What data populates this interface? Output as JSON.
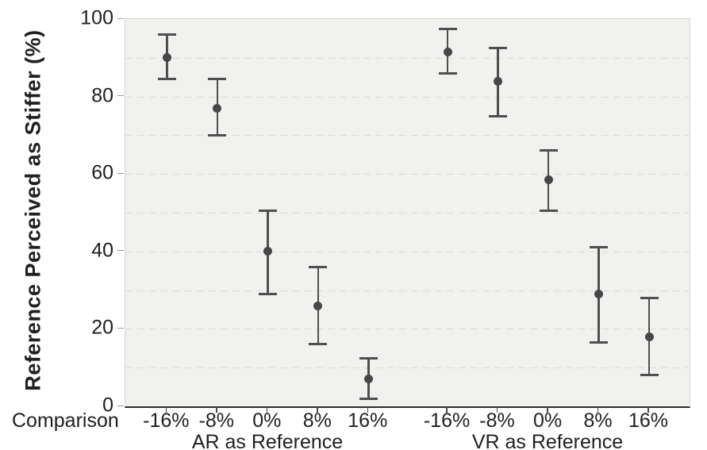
{
  "chart_data": {
    "type": "scatter",
    "error_bars": true,
    "title": "",
    "ylabel": "Reference Perceived as Stiffer (%)",
    "xlabel": "Comparison",
    "ylim": [
      0,
      100
    ],
    "yticks": [
      0,
      20,
      40,
      60,
      80,
      100
    ],
    "gridline_step": 10,
    "grid": "horizontal-dashed",
    "legend_position": "none",
    "categories": [
      "-16%",
      "-8%",
      "0%",
      "8%",
      "16%"
    ],
    "series": [
      {
        "name": "AR as Reference",
        "means": [
          90,
          77,
          40,
          26,
          7
        ],
        "ci_low": [
          84.5,
          70,
          29,
          16,
          2
        ],
        "ci_high": [
          96,
          84.5,
          50.5,
          36,
          12.5
        ]
      },
      {
        "name": "VR as Reference",
        "means": [
          91.5,
          84,
          58.5,
          29,
          18
        ],
        "ci_low": [
          86,
          75,
          50.5,
          16.5,
          8
        ],
        "ci_high": [
          97.5,
          92.5,
          66,
          41,
          28
        ]
      }
    ],
    "colors": {
      "marker": "#474747",
      "error_bar": "#4f4f4f",
      "plot_background": "#f1f1ef",
      "gridline": "#dbdbd6",
      "axis_line": "#2e2e2e",
      "text": "#1f1f1f"
    }
  }
}
